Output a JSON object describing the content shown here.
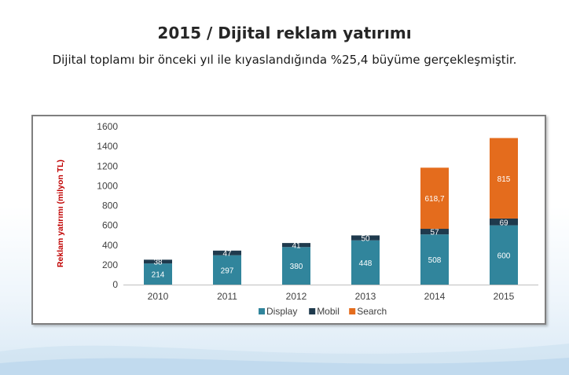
{
  "slide": {
    "title": "2015 / Dijital reklam yatırımı",
    "subtitle": "Dijital toplamı bir önceki yıl ile kıyaslandığında %25,4 büyüme gerçekleşmiştir."
  },
  "colors": {
    "display": "#31859c",
    "mobil": "#1f3a4d",
    "search": "#e46c1d",
    "ylabel": "#c00000"
  },
  "chart_data": {
    "type": "bar",
    "stacked": true,
    "categories": [
      "2010",
      "2011",
      "2012",
      "2013",
      "2014",
      "2015"
    ],
    "series": [
      {
        "name": "Display",
        "values": [
          214,
          297,
          380,
          448,
          508,
          600
        ],
        "labels": [
          "214",
          "297",
          "380",
          "448",
          "508",
          "600"
        ]
      },
      {
        "name": "Mobil",
        "values": [
          38,
          47,
          41,
          50,
          57,
          69
        ],
        "labels": [
          "38",
          "47",
          "41",
          "50",
          "57",
          "69"
        ]
      },
      {
        "name": "Search",
        "values": [
          0,
          0,
          0,
          0,
          618.7,
          815
        ],
        "labels": [
          "",
          "",
          "",
          "",
          "618,7",
          "815"
        ]
      }
    ],
    "ylabel": "Reklam yatırımı (milyon TL)",
    "ylim": [
      0,
      1600
    ],
    "yticks": [
      0,
      200,
      400,
      600,
      800,
      1000,
      1200,
      1400,
      1600
    ],
    "grid": false,
    "legend_position": "bottom"
  }
}
